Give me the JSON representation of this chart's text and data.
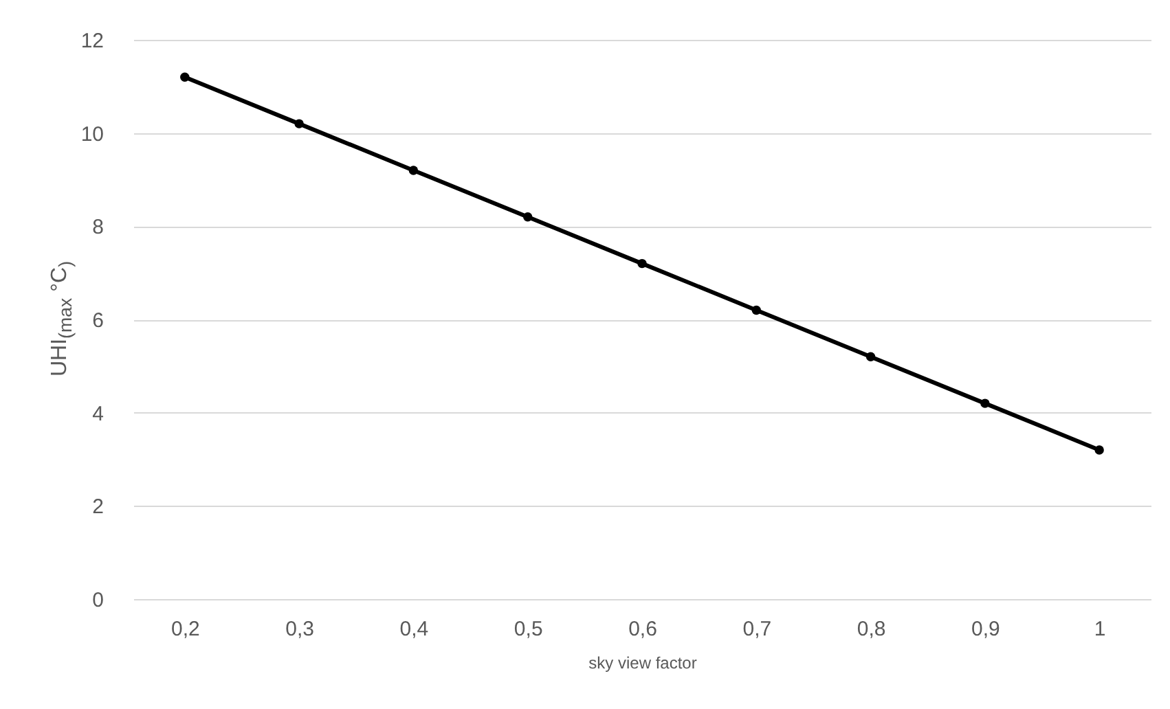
{
  "chart_data": {
    "type": "line",
    "xlabel": "sky view factor",
    "ylabel": "UHI$_{(max}$ °C$_{)}$",
    "categories": [
      "0,2",
      "0,3",
      "0,4",
      "0,5",
      "0,6",
      "0,7",
      "0,8",
      "0,9",
      "1"
    ],
    "series": [
      {
        "color": "#000000",
        "values": [
          11.2,
          10.2,
          9.2,
          8.2,
          7.2,
          6.2,
          5.2,
          4.2,
          3.2
        ]
      }
    ],
    "ylim": [
      0,
      12
    ],
    "yticks": [
      0,
      2,
      4,
      6,
      8,
      10,
      12
    ],
    "grid": "y",
    "marker": "circle",
    "line_style": "solid"
  }
}
